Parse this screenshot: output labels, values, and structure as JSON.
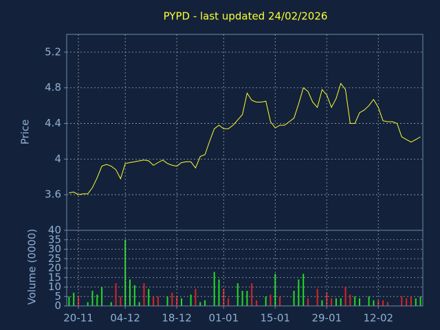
{
  "chart_data": [
    {
      "type": "line",
      "title": "PYPD - last updated 24/02/2026",
      "ylabel": "Price",
      "color": "#ffff33",
      "ylim": [
        3.2,
        5.4
      ],
      "yticks": [
        3.6,
        4,
        4.4,
        4.8,
        5.2
      ],
      "grid": true,
      "values": [
        3.62,
        3.63,
        3.6,
        3.61,
        3.61,
        3.68,
        3.79,
        3.92,
        3.94,
        3.92,
        3.88,
        3.78,
        3.95,
        3.96,
        3.97,
        3.98,
        3.99,
        3.98,
        3.93,
        3.96,
        3.99,
        3.95,
        3.93,
        3.92,
        3.96,
        3.97,
        3.97,
        3.9,
        4.03,
        4.05,
        4.2,
        4.34,
        4.38,
        4.34,
        4.34,
        4.38,
        4.44,
        4.5,
        4.74,
        4.66,
        4.64,
        4.64,
        4.65,
        4.42,
        4.35,
        4.38,
        4.38,
        4.42,
        4.46,
        4.62,
        4.8,
        4.76,
        4.64,
        4.58,
        4.78,
        4.72,
        4.58,
        4.68,
        4.85,
        4.78,
        4.4,
        4.4,
        4.52,
        4.55,
        4.6,
        4.67,
        4.58,
        4.43,
        4.42,
        4.42,
        4.4,
        4.25,
        4.22,
        4.19,
        4.22,
        4.25
      ]
    },
    {
      "type": "bar",
      "ylabel": "Volume (0000)",
      "ylim": [
        0,
        40
      ],
      "yticks": [
        0,
        5,
        10,
        15,
        20,
        25,
        30,
        35,
        40
      ],
      "grid": true,
      "categories": [
        null,
        null,
        "20-11",
        null,
        null,
        null,
        null,
        null,
        null,
        null,
        null,
        null,
        "04-12",
        null,
        null,
        null,
        null,
        null,
        null,
        null,
        null,
        null,
        null,
        "18-12",
        null,
        null,
        null,
        null,
        null,
        null,
        null,
        null,
        null,
        "01-01",
        null,
        null,
        null,
        null,
        null,
        null,
        null,
        null,
        null,
        null,
        "15-01",
        null,
        null,
        null,
        null,
        null,
        null,
        null,
        null,
        null,
        null,
        "29-01",
        null,
        null,
        null,
        null,
        null,
        null,
        null,
        null,
        null,
        null,
        "12-02",
        null,
        null,
        null,
        null,
        null,
        null,
        null,
        null,
        null
      ],
      "values": [
        5,
        7,
        5,
        0,
        2,
        8,
        6,
        10,
        0,
        2,
        12,
        5,
        35,
        14,
        11,
        2,
        12,
        9,
        5,
        5,
        0,
        5,
        7,
        5,
        4,
        0,
        6,
        9,
        2,
        3,
        0,
        18,
        14,
        9,
        4,
        0,
        12,
        8,
        8,
        12,
        3,
        0,
        5,
        6,
        17,
        5,
        0,
        0,
        8,
        14,
        17,
        4,
        0,
        9,
        3,
        7,
        4,
        4,
        4,
        10,
        6,
        5,
        4,
        0,
        5,
        3,
        3,
        3,
        2,
        0,
        0,
        5,
        4,
        5,
        4,
        5
      ],
      "colors": [
        "#22dd22",
        "#22dd22",
        "#dd2222",
        "#22dd22",
        "#22dd22",
        "#22dd22",
        "#22dd22",
        "#22dd22",
        "#22dd22",
        "#22dd22",
        "#dd2222",
        "#dd2222",
        "#22dd22",
        "#22dd22",
        "#22dd22",
        "#22dd22",
        "#dd2222",
        "#22dd22",
        "#dd2222",
        "#dd2222",
        "#22dd22",
        "#22dd22",
        "#dd2222",
        "#dd2222",
        "#22dd22",
        "#22dd22",
        "#22dd22",
        "#dd2222",
        "#22dd22",
        "#22dd22",
        "#22dd22",
        "#22dd22",
        "#22dd22",
        "#dd2222",
        "#dd2222",
        "#22dd22",
        "#22dd22",
        "#22dd22",
        "#22dd22",
        "#dd2222",
        "#dd2222",
        "#22dd22",
        "#22dd22",
        "#dd2222",
        "#22dd22",
        "#dd2222",
        "#22dd22",
        "#22dd22",
        "#22dd22",
        "#22dd22",
        "#22dd22",
        "#dd2222",
        "#22dd22",
        "#dd2222",
        "#22dd22",
        "#dd2222",
        "#dd2222",
        "#22dd22",
        "#22dd22",
        "#dd2222",
        "#dd2222",
        "#22dd22",
        "#22dd22",
        "#22dd22",
        "#22dd22",
        "#22dd22",
        "#dd2222",
        "#dd2222",
        "#dd2222",
        "#22dd22",
        "#22dd22",
        "#dd2222",
        "#dd2222",
        "#dd2222",
        "#22dd22",
        "#22dd22"
      ]
    }
  ]
}
